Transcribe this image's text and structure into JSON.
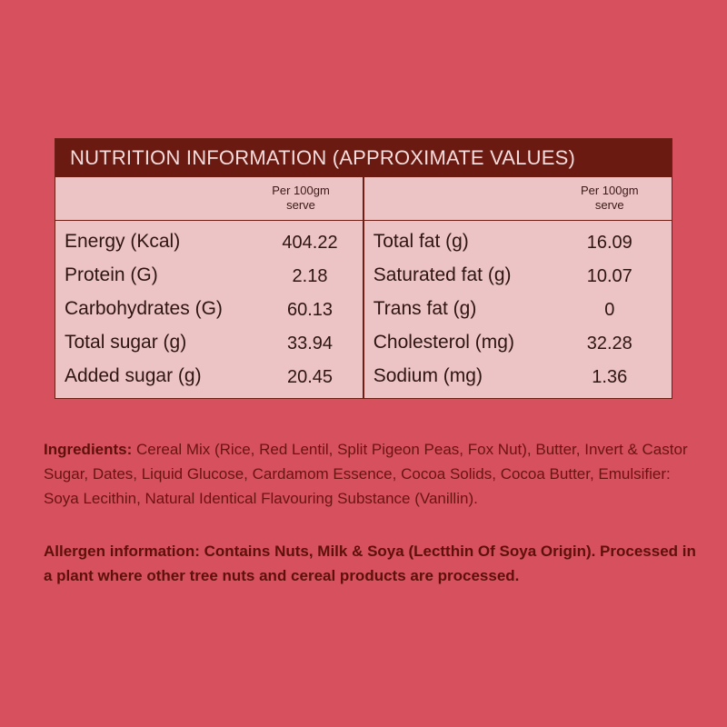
{
  "table": {
    "title": "NUTRITION INFORMATION (APPROXIMATE VALUES)",
    "left": {
      "header_line1": "Per 100gm",
      "header_line2": "serve",
      "rows": [
        {
          "name": "Energy (Kcal)",
          "value": "404.22"
        },
        {
          "name": "Protein (G)",
          "value": "2.18"
        },
        {
          "name": "Carbohydrates (G)",
          "value": "60.13"
        },
        {
          "name": "Total sugar (g)",
          "value": "33.94"
        },
        {
          "name": "Added sugar (g)",
          "value": "20.45"
        }
      ]
    },
    "right": {
      "header_line1": "Per 100gm",
      "header_line2": "serve",
      "rows": [
        {
          "name": "Total fat (g)",
          "value": "16.09"
        },
        {
          "name": "Saturated fat (g)",
          "value": "10.07"
        },
        {
          "name": "Trans fat (g)",
          "value": "0"
        },
        {
          "name": "Cholesterol (mg)",
          "value": "32.28"
        },
        {
          "name": "Sodium (mg)",
          "value": "1.36"
        }
      ]
    }
  },
  "ingredients": {
    "label": "Ingredients:",
    "text": " Cereal Mix (Rice, Red Lentil, Split Pigeon Peas, Fox Nut), Butter, Invert & Castor Sugar, Dates, Liquid Glucose, Cardamom Essence, Cocoa Solids, Cocoa Butter, Emulsifier: Soya Lecithin, Natural Identical Flavouring Substance (Vanillin)."
  },
  "allergen": {
    "label": "Allergen information:",
    "text": " Contains Nuts, Milk & Soya (Lectthin Of Soya Origin). Processed in a plant where other tree nuts and cereal products are processed."
  },
  "colors": {
    "background": "#d6505e",
    "title_bar": "#6a1a10",
    "table_bg": "#ecc4c6",
    "text_dark_red": "#6a1410"
  }
}
